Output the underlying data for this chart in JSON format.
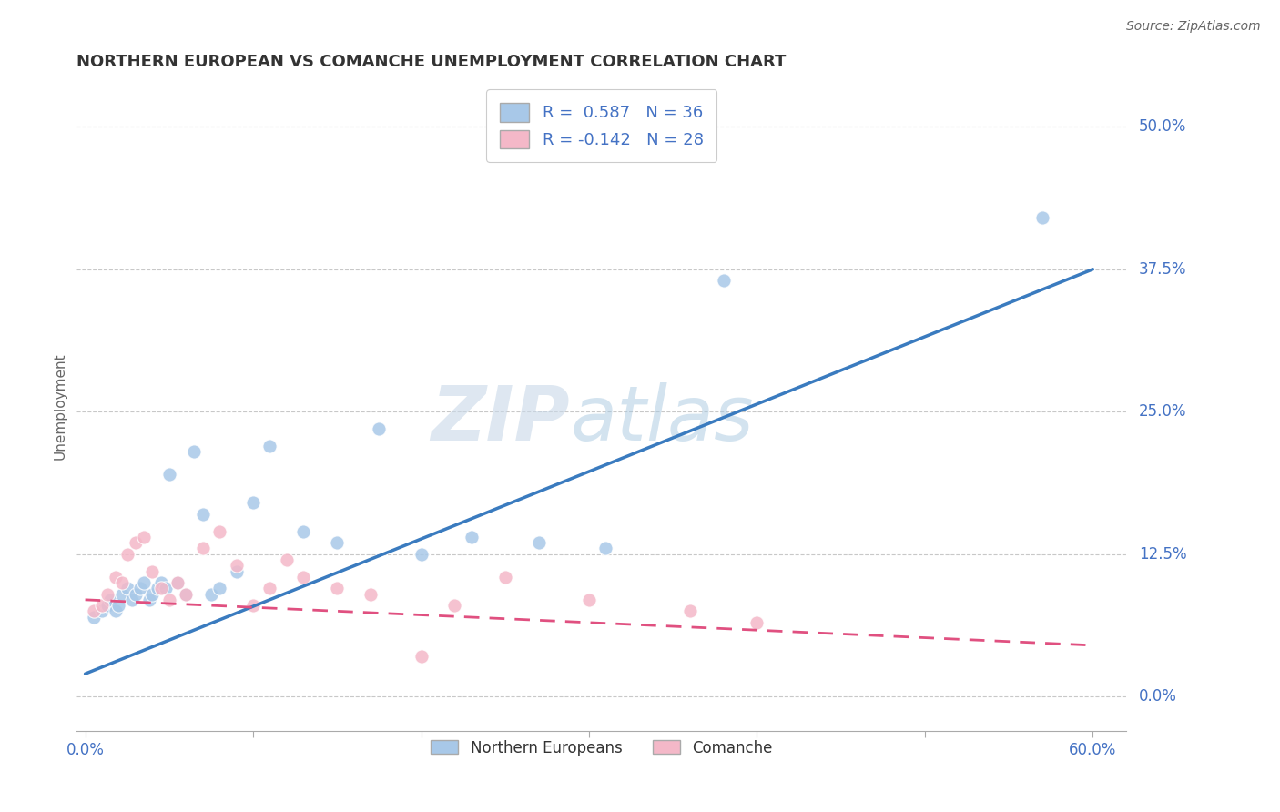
{
  "title": "NORTHERN EUROPEAN VS COMANCHE UNEMPLOYMENT CORRELATION CHART",
  "source": "Source: ZipAtlas.com",
  "ylabel_label": "Unemployment",
  "ytick_labels": [
    "0.0%",
    "12.5%",
    "25.0%",
    "37.5%",
    "50.0%"
  ],
  "ytick_values": [
    0.0,
    12.5,
    25.0,
    37.5,
    50.0
  ],
  "xlim": [
    -0.005,
    0.62
  ],
  "ylim": [
    -3.0,
    54.0
  ],
  "legend_entry1": "R =  0.587   N = 36",
  "legend_entry2": "R = -0.142   N = 28",
  "legend_label1": "Northern Europeans",
  "legend_label2": "Comanche",
  "watermark_zip": "ZIP",
  "watermark_atlas": "atlas",
  "blue_scatter_x": [
    0.005,
    0.01,
    0.013,
    0.015,
    0.018,
    0.02,
    0.022,
    0.025,
    0.028,
    0.03,
    0.033,
    0.035,
    0.038,
    0.04,
    0.043,
    0.045,
    0.048,
    0.05,
    0.055,
    0.06,
    0.065,
    0.07,
    0.075,
    0.08,
    0.09,
    0.1,
    0.11,
    0.13,
    0.15,
    0.175,
    0.2,
    0.23,
    0.27,
    0.31,
    0.38,
    0.57
  ],
  "blue_scatter_y": [
    7.0,
    7.5,
    8.0,
    8.5,
    7.5,
    8.0,
    9.0,
    9.5,
    8.5,
    9.0,
    9.5,
    10.0,
    8.5,
    9.0,
    9.5,
    10.0,
    9.5,
    19.5,
    10.0,
    9.0,
    21.5,
    16.0,
    9.0,
    9.5,
    11.0,
    17.0,
    22.0,
    14.5,
    13.5,
    23.5,
    12.5,
    14.0,
    13.5,
    13.0,
    36.5,
    42.0
  ],
  "pink_scatter_x": [
    0.005,
    0.01,
    0.013,
    0.018,
    0.022,
    0.025,
    0.03,
    0.035,
    0.04,
    0.045,
    0.05,
    0.055,
    0.06,
    0.07,
    0.08,
    0.09,
    0.1,
    0.11,
    0.12,
    0.13,
    0.15,
    0.17,
    0.2,
    0.22,
    0.25,
    0.3,
    0.36,
    0.4
  ],
  "pink_scatter_y": [
    7.5,
    8.0,
    9.0,
    10.5,
    10.0,
    12.5,
    13.5,
    14.0,
    11.0,
    9.5,
    8.5,
    10.0,
    9.0,
    13.0,
    14.5,
    11.5,
    8.0,
    9.5,
    12.0,
    10.5,
    9.5,
    9.0,
    3.5,
    8.0,
    10.5,
    8.5,
    7.5,
    6.5
  ],
  "blue_line_x": [
    0.0,
    0.6
  ],
  "blue_line_y": [
    2.0,
    37.5
  ],
  "pink_line_x": [
    0.0,
    0.6
  ],
  "pink_line_y": [
    8.5,
    4.5
  ],
  "blue_color": "#a8c8e8",
  "pink_color": "#f4b8c8",
  "blue_line_color": "#3a7bbf",
  "pink_line_color": "#e05080",
  "grid_color": "#c8c8c8",
  "title_color": "#333333",
  "axis_label_color": "#4472c4",
  "background_color": "#ffffff",
  "xtick_positions": [
    0.0,
    0.1,
    0.2,
    0.3,
    0.4,
    0.5,
    0.6
  ]
}
